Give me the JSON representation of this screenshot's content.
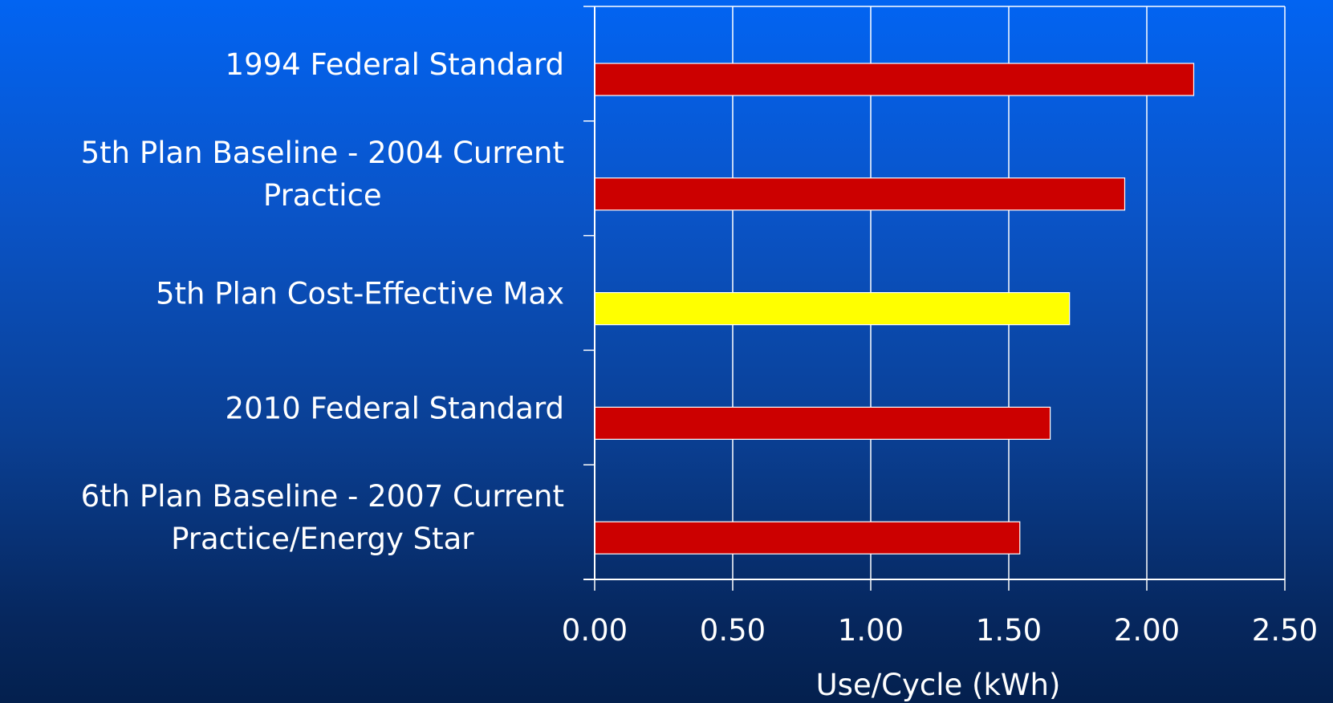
{
  "chart_data": {
    "type": "bar",
    "orientation": "horizontal",
    "categories": [
      "1994 Federal Standard",
      "5th Plan Baseline - 2004 Current Practice",
      "5th Plan Cost-Effective Max",
      "2010 Federal Standard",
      "6th Plan Baseline - 2007 Current Practice/Energy Star"
    ],
    "category_label_lines": [
      [
        "1994 Federal Standard"
      ],
      [
        "5th Plan Baseline - 2004 Current",
        "Practice"
      ],
      [
        "5th Plan Cost-Effective Max"
      ],
      [
        "2010 Federal Standard"
      ],
      [
        "6th Plan Baseline - 2007 Current",
        "Practice/Energy Star"
      ]
    ],
    "values": [
      2.17,
      1.92,
      1.72,
      1.65,
      1.54
    ],
    "bar_colors": [
      "#cc0000",
      "#cc0000",
      "#ffff00",
      "#cc0000",
      "#cc0000"
    ],
    "xlabel": "Use/Cycle (kWh)",
    "ylabel": "",
    "title": "",
    "xlim": [
      0,
      2.5
    ],
    "x_ticks": [
      0,
      0.5,
      1.0,
      1.5,
      2.0,
      2.5
    ],
    "x_tick_labels": [
      "0.00",
      "0.50",
      "1.00",
      "1.50",
      "2.00",
      "2.50"
    ],
    "grid": "vertical",
    "legend": "none"
  },
  "colors": {
    "axis": "#ffffff",
    "text": "#ffffff",
    "bar_outline": "#ffffff",
    "background_top": "#0264f2",
    "background_bottom": "#04204e"
  }
}
